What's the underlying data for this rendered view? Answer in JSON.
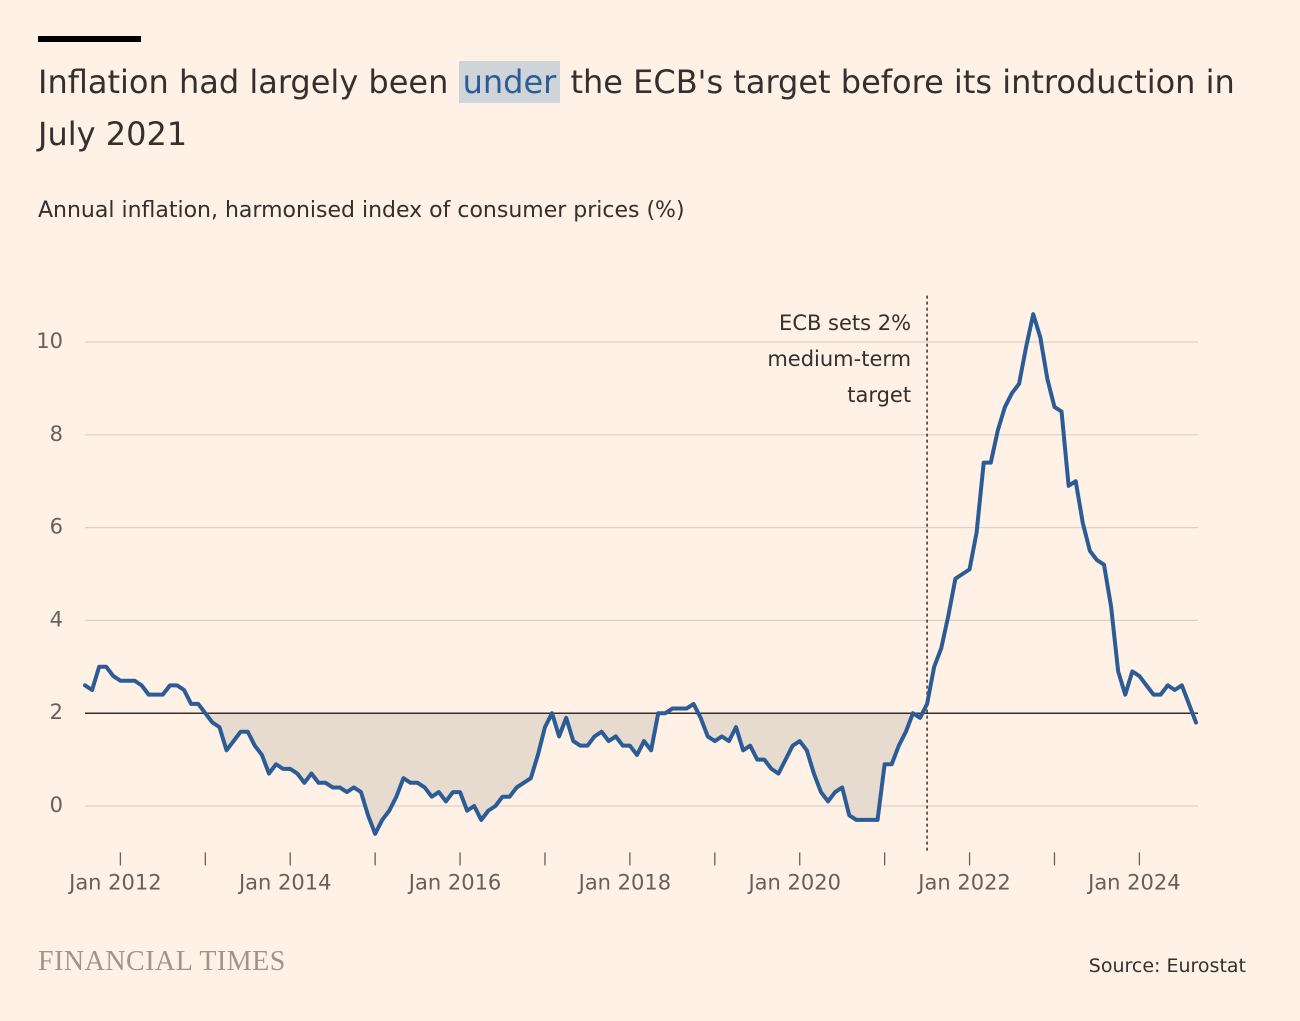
{
  "chart_data": {
    "type": "line",
    "title_before": "Inflation had largely been",
    "title_highlight": "under",
    "title_after": "the ECB's target before its introduction in July 2021",
    "subtitle": "Annual inflation, harmonised index of consumer prices (%)",
    "source": "Source: Eurostat",
    "brand": "FINANCIAL TIMES",
    "color": "#2b5c95",
    "shade_color": "#e7dbd0",
    "x": [
      "2011-08",
      "2011-09",
      "2011-10",
      "2011-11",
      "2011-12",
      "2012-01",
      "2012-02",
      "2012-03",
      "2012-04",
      "2012-05",
      "2012-06",
      "2012-07",
      "2012-08",
      "2012-09",
      "2012-10",
      "2012-11",
      "2012-12",
      "2013-01",
      "2013-02",
      "2013-03",
      "2013-04",
      "2013-05",
      "2013-06",
      "2013-07",
      "2013-08",
      "2013-09",
      "2013-10",
      "2013-11",
      "2013-12",
      "2014-01",
      "2014-02",
      "2014-03",
      "2014-04",
      "2014-05",
      "2014-06",
      "2014-07",
      "2014-08",
      "2014-09",
      "2014-10",
      "2014-11",
      "2014-12",
      "2015-01",
      "2015-02",
      "2015-03",
      "2015-04",
      "2015-05",
      "2015-06",
      "2015-07",
      "2015-08",
      "2015-09",
      "2015-10",
      "2015-11",
      "2015-12",
      "2016-01",
      "2016-02",
      "2016-03",
      "2016-04",
      "2016-05",
      "2016-06",
      "2016-07",
      "2016-08",
      "2016-09",
      "2016-10",
      "2016-11",
      "2016-12",
      "2017-01",
      "2017-02",
      "2017-03",
      "2017-04",
      "2017-05",
      "2017-06",
      "2017-07",
      "2017-08",
      "2017-09",
      "2017-10",
      "2017-11",
      "2017-12",
      "2018-01",
      "2018-02",
      "2018-03",
      "2018-04",
      "2018-05",
      "2018-06",
      "2018-07",
      "2018-08",
      "2018-09",
      "2018-10",
      "2018-11",
      "2018-12",
      "2019-01",
      "2019-02",
      "2019-03",
      "2019-04",
      "2019-05",
      "2019-06",
      "2019-07",
      "2019-08",
      "2019-09",
      "2019-10",
      "2019-11",
      "2019-12",
      "2020-01",
      "2020-02",
      "2020-03",
      "2020-04",
      "2020-05",
      "2020-06",
      "2020-07",
      "2020-08",
      "2020-09",
      "2020-10",
      "2020-11",
      "2020-12",
      "2021-01",
      "2021-02",
      "2021-03",
      "2021-04",
      "2021-05",
      "2021-06",
      "2021-07",
      "2021-08",
      "2021-09",
      "2021-10",
      "2021-11",
      "2021-12",
      "2022-01",
      "2022-02",
      "2022-03",
      "2022-04",
      "2022-05",
      "2022-06",
      "2022-07",
      "2022-08",
      "2022-09",
      "2022-10",
      "2022-11",
      "2022-12",
      "2023-01",
      "2023-02",
      "2023-03",
      "2023-04",
      "2023-05",
      "2023-06",
      "2023-07",
      "2023-08",
      "2023-09",
      "2023-10",
      "2023-11",
      "2023-12",
      "2024-01",
      "2024-02",
      "2024-03",
      "2024-04",
      "2024-05",
      "2024-06",
      "2024-07",
      "2024-08",
      "2024-09"
    ],
    "values": [
      2.6,
      2.5,
      3.0,
      3.0,
      2.8,
      2.7,
      2.7,
      2.7,
      2.6,
      2.4,
      2.4,
      2.4,
      2.6,
      2.6,
      2.5,
      2.2,
      2.2,
      2.0,
      1.8,
      1.7,
      1.2,
      1.4,
      1.6,
      1.6,
      1.3,
      1.1,
      0.7,
      0.9,
      0.8,
      0.8,
      0.7,
      0.5,
      0.7,
      0.5,
      0.5,
      0.4,
      0.4,
      0.3,
      0.4,
      0.3,
      -0.2,
      -0.6,
      -0.3,
      -0.1,
      0.2,
      0.6,
      0.5,
      0.5,
      0.4,
      0.2,
      0.3,
      0.1,
      0.3,
      0.3,
      -0.1,
      0.0,
      -0.3,
      -0.1,
      0.0,
      0.2,
      0.2,
      0.4,
      0.5,
      0.6,
      1.1,
      1.7,
      2.0,
      1.5,
      1.9,
      1.4,
      1.3,
      1.3,
      1.5,
      1.6,
      1.4,
      1.5,
      1.3,
      1.3,
      1.1,
      1.4,
      1.2,
      2.0,
      2.0,
      2.1,
      2.1,
      2.1,
      2.2,
      1.9,
      1.5,
      1.4,
      1.5,
      1.4,
      1.7,
      1.2,
      1.3,
      1.0,
      1.0,
      0.8,
      0.7,
      1.0,
      1.3,
      1.4,
      1.2,
      0.7,
      0.3,
      0.1,
      0.3,
      0.4,
      -0.2,
      -0.3,
      -0.3,
      -0.3,
      -0.3,
      0.9,
      0.9,
      1.3,
      1.6,
      2.0,
      1.9,
      2.2,
      3.0,
      3.4,
      4.1,
      4.9,
      5.0,
      5.1,
      5.9,
      7.4,
      7.4,
      8.1,
      8.6,
      8.9,
      9.1,
      9.9,
      10.6,
      10.1,
      9.2,
      8.6,
      8.5,
      6.9,
      7.0,
      6.1,
      5.5,
      5.3,
      5.2,
      4.3,
      2.9,
      2.4,
      2.9,
      2.8,
      2.6,
      2.4,
      2.4,
      2.6,
      2.5,
      2.6,
      2.2,
      1.8
    ],
    "xlim": [
      "2011-08",
      "2024-09"
    ],
    "xticks": [
      {
        "value": "2012-01",
        "label": "Jan 2012"
      },
      {
        "value": "2014-01",
        "label": "Jan 2014"
      },
      {
        "value": "2016-01",
        "label": "Jan 2016"
      },
      {
        "value": "2018-01",
        "label": "Jan 2018"
      },
      {
        "value": "2020-01",
        "label": "Jan 2020"
      },
      {
        "value": "2022-01",
        "label": "Jan 2022"
      },
      {
        "value": "2024-01",
        "label": "Jan 2024"
      }
    ],
    "xminor_ticks": [
      "2013-01",
      "2015-01",
      "2017-01",
      "2019-01",
      "2021-01",
      "2023-01"
    ],
    "ylim": [
      -1,
      11
    ],
    "yticks": [
      0,
      2,
      4,
      6,
      8,
      10
    ],
    "grid": true,
    "reference_line": 2,
    "annotation": {
      "x": "2021-07",
      "lines": [
        "ECB sets 2%",
        "medium-term",
        "target"
      ]
    }
  }
}
